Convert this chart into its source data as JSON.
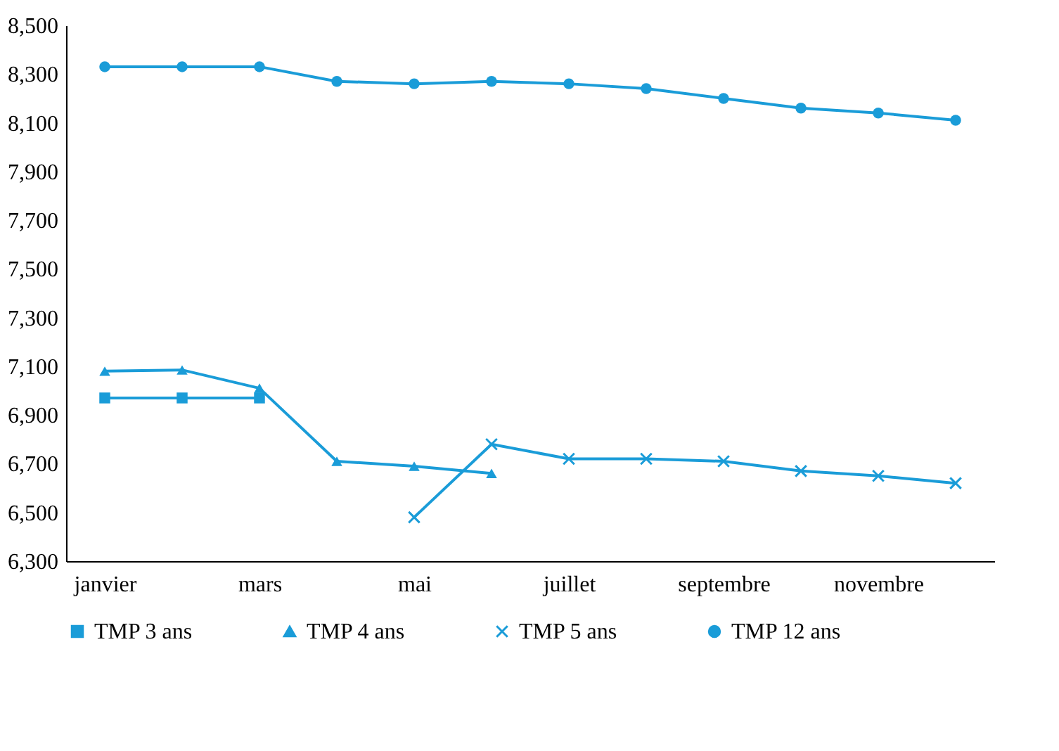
{
  "chart_data": {
    "type": "line",
    "categories": [
      "janvier",
      null,
      "mars",
      null,
      "mai",
      null,
      "juillet",
      null,
      "septembre",
      null,
      "novembre",
      null
    ],
    "ylim": [
      6300,
      8500
    ],
    "yticks": [
      {
        "value": 6300,
        "label": "6,300"
      },
      {
        "value": 6500,
        "label": "6,500"
      },
      {
        "value": 6700,
        "label": "6,700"
      },
      {
        "value": 6900,
        "label": "6,900"
      },
      {
        "value": 7100,
        "label": "7,100"
      },
      {
        "value": 7300,
        "label": "7,300"
      },
      {
        "value": 7500,
        "label": "7,500"
      },
      {
        "value": 7700,
        "label": "7,700"
      },
      {
        "value": 7900,
        "label": "7,900"
      },
      {
        "value": 8100,
        "label": "8,100"
      },
      {
        "value": 8300,
        "label": "8,300"
      },
      {
        "value": 8500,
        "label": "8,500"
      }
    ],
    "legend": "bottom",
    "grid": false,
    "series": [
      {
        "name": "TMP 3 ans",
        "color": "#1a9cd8",
        "marker": "square",
        "values": [
          6970,
          6970,
          6970,
          null,
          null,
          null,
          null,
          null,
          null,
          null,
          null,
          null
        ]
      },
      {
        "name": "TMP 4 ans",
        "color": "#1a9cd8",
        "marker": "triangle",
        "values": [
          7080,
          7085,
          7010,
          6710,
          6690,
          6660,
          null,
          null,
          null,
          null,
          null,
          null
        ]
      },
      {
        "name": "TMP 5 ans",
        "color": "#1a9cd8",
        "marker": "cross",
        "values": [
          null,
          null,
          null,
          null,
          6480,
          6780,
          6720,
          6720,
          6710,
          6670,
          6650,
          6620
        ]
      },
      {
        "name": "TMP 12 ans",
        "color": "#1a9cd8",
        "marker": "circle",
        "values": [
          8330,
          8330,
          8330,
          8270,
          8260,
          8270,
          8260,
          8240,
          8200,
          8160,
          8140,
          8110
        ]
      }
    ]
  }
}
